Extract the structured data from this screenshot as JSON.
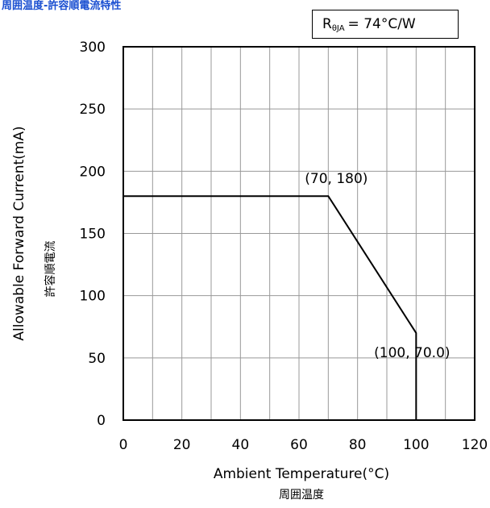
{
  "title": "周囲温度-許容順電流特性",
  "thermal_box": {
    "symbol": "R",
    "subscript": "θJA",
    "value": "= 74°C/W"
  },
  "chart_data": {
    "type": "line",
    "xlabel": "Ambient Temperature(°C)",
    "xlabel_sub": "周囲温度",
    "ylabel": "Allowable Forward Current(mA)",
    "ylabel_sub": "許容順電流",
    "xlim": [
      0,
      120
    ],
    "ylim": [
      0,
      300
    ],
    "xticks": [
      "0",
      "20",
      "40",
      "60",
      "80",
      "100",
      "120"
    ],
    "yticks": [
      "0",
      "50",
      "100",
      "150",
      "200",
      "250",
      "300"
    ],
    "x_grid_step": 10,
    "grid": true,
    "series": [
      {
        "x": [
          0,
          70,
          100,
          100
        ],
        "y": [
          180,
          180,
          70,
          0
        ]
      }
    ],
    "annotations": [
      {
        "text": "(70, 180)",
        "x": 70,
        "y": 180
      },
      {
        "text": "(100, 70.0)",
        "x": 100,
        "y": 70
      }
    ]
  }
}
